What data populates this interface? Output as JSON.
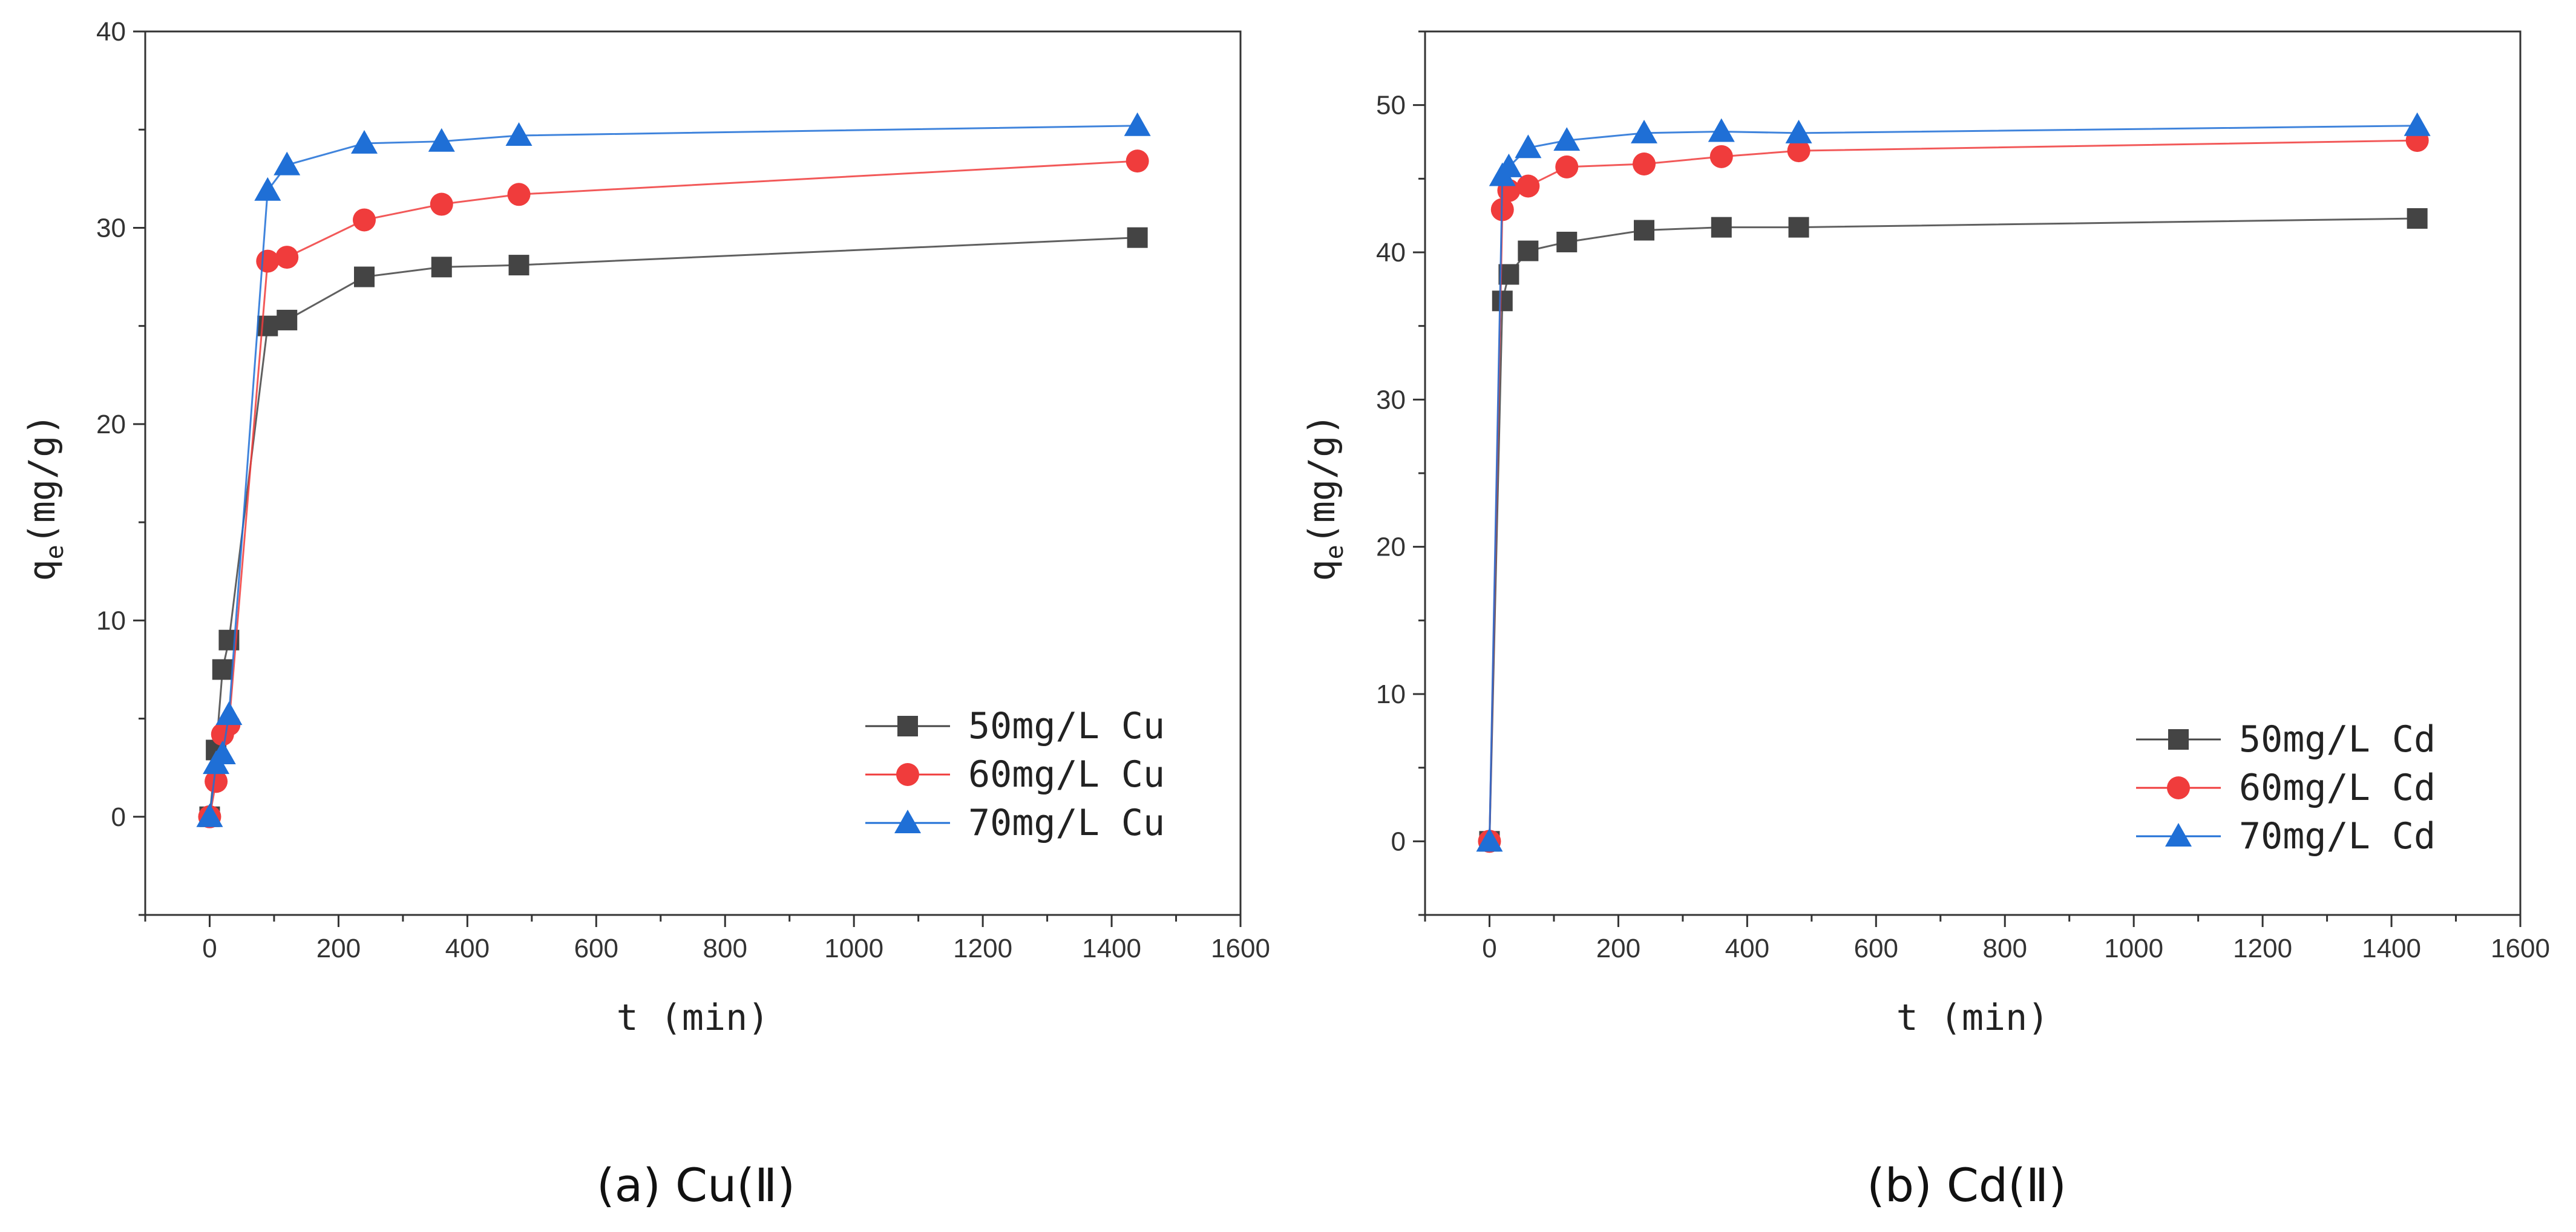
{
  "chart_data": [
    {
      "type": "line",
      "panel": "a",
      "caption": "(a) Cu(Ⅱ)",
      "xlabel": "t (min)",
      "ylabel_main": "q",
      "ylabel_sub": "e",
      "ylabel_tail": "(mg/g)",
      "xlim": [
        -100,
        1600
      ],
      "ylim": [
        -5,
        40
      ],
      "xticks": [
        0,
        200,
        400,
        600,
        800,
        1000,
        1200,
        1400,
        1600
      ],
      "yticks": [
        0,
        10,
        20,
        30,
        40
      ],
      "x": [
        0,
        10,
        20,
        30,
        90,
        120,
        240,
        360,
        480,
        1440
      ],
      "legend_position": "lower-right",
      "series": [
        {
          "name": "50mg/L Cu",
          "marker": "square",
          "color": "#444444",
          "values": [
            0,
            3.4,
            7.5,
            9.0,
            25.0,
            25.3,
            27.5,
            28.0,
            28.1,
            29.5
          ]
        },
        {
          "name": "60mg/L Cu",
          "marker": "circle",
          "color": "#f03c3c",
          "values": [
            0,
            1.8,
            4.2,
            4.7,
            28.3,
            28.5,
            30.4,
            31.2,
            31.7,
            33.4
          ]
        },
        {
          "name": "70mg/L Cu",
          "marker": "triangle",
          "color": "#1f6fd6",
          "values": [
            0,
            2.7,
            3.2,
            5.2,
            31.9,
            33.2,
            34.3,
            34.4,
            34.7,
            35.2
          ]
        }
      ]
    },
    {
      "type": "line",
      "panel": "b",
      "caption": "(b) Cd(Ⅱ)",
      "xlabel": "t (min)",
      "ylabel_main": "q",
      "ylabel_sub": "e",
      "ylabel_tail": "(mg/g)",
      "xlim": [
        -100,
        1600
      ],
      "ylim": [
        -5,
        55
      ],
      "xticks": [
        0,
        200,
        400,
        600,
        800,
        1000,
        1200,
        1400,
        1600
      ],
      "yticks": [
        0,
        10,
        20,
        30,
        40,
        50
      ],
      "x": [
        0,
        20,
        30,
        60,
        120,
        240,
        360,
        480,
        1440
      ],
      "legend_position": "lower-right",
      "series": [
        {
          "name": "50mg/L Cd",
          "marker": "square",
          "color": "#444444",
          "values": [
            0,
            36.7,
            38.5,
            40.1,
            40.7,
            41.5,
            41.7,
            41.7,
            42.3
          ]
        },
        {
          "name": "60mg/L Cd",
          "marker": "circle",
          "color": "#f03c3c",
          "values": [
            0,
            42.9,
            44.2,
            44.5,
            45.8,
            46.0,
            46.5,
            46.9,
            47.6
          ]
        },
        {
          "name": "70mg/L Cd",
          "marker": "triangle",
          "color": "#1f6fd6",
          "values": [
            0,
            45.2,
            45.8,
            47.1,
            47.6,
            48.1,
            48.2,
            48.1,
            48.6
          ]
        }
      ]
    }
  ]
}
